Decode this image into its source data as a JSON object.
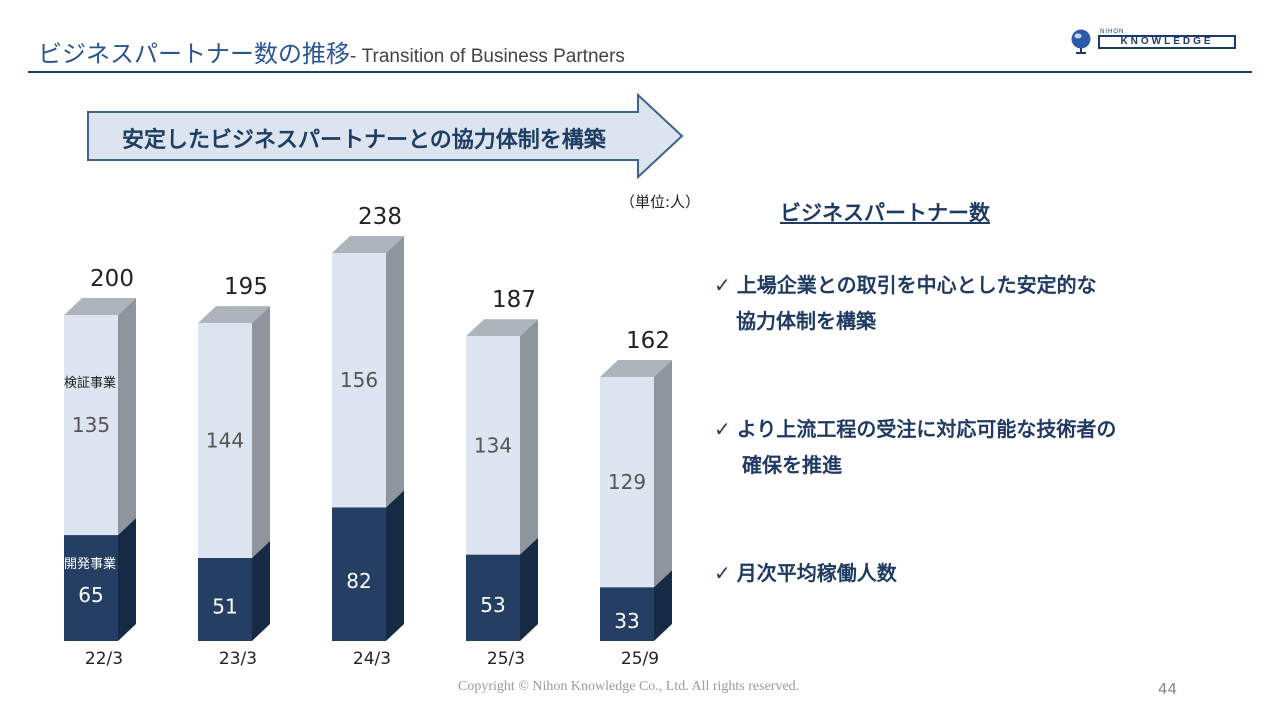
{
  "header": {
    "title_jp": "ビジネスパートナー数の推移",
    "title_en": "- Transition of Business Partners"
  },
  "logo": {
    "top_text": "NIHON",
    "main_text": "KNOWLEDGE"
  },
  "banner": {
    "text": "安定したビジネスパートナーとの協力体制を構築"
  },
  "unit_label": "（単位:人）",
  "chart_data": {
    "type": "bar",
    "stacked": true,
    "categories": [
      "22/3",
      "23/3",
      "24/3",
      "25/3",
      "25/9"
    ],
    "series": [
      {
        "name": "開発事業",
        "values": [
          65,
          51,
          82,
          53,
          33
        ]
      },
      {
        "name": "検証事業",
        "values": [
          135,
          144,
          156,
          134,
          129
        ]
      }
    ],
    "totals": [
      200,
      195,
      238,
      187,
      162
    ],
    "colors": {
      "develop": "#243f63",
      "verify": "#dde5f0",
      "verify_side": "#8e959c",
      "develop_side": "#172a45"
    }
  },
  "legend_panel": {
    "heading": "ビジネスパートナー数",
    "check": "✓",
    "point1_line1": "上場企業との取引を中心とした安定的な",
    "point1_line2": "協力体制を構築",
    "point2_line1": "より上流工程の受注に対応可能な技術者の",
    "point2_line2": "確保を推進",
    "point3": "月次平均稼働人数"
  },
  "footer": {
    "copyright": "Copyright © Nihon Knowledge Co., Ltd. All rights reserved.",
    "page": "44"
  }
}
